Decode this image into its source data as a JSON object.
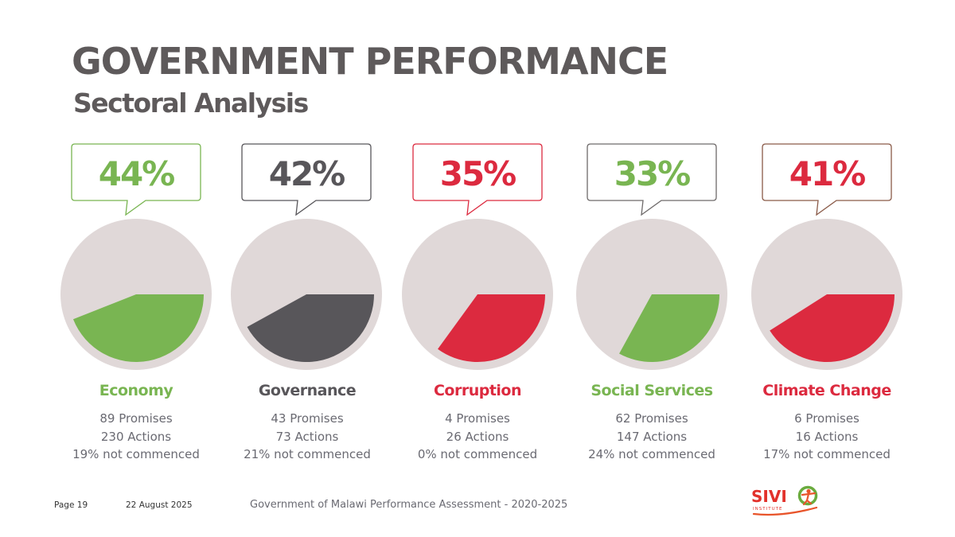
{
  "title": "GOVERNMENT PERFORMANCE",
  "subtitle": "Sectoral Analysis",
  "colors": {
    "green": "#79b552",
    "dark": "#58565a",
    "red": "#dc2a3f",
    "pie_background": "#e0d8d8",
    "climate_outline": "#8a5a48"
  },
  "chart_data": {
    "type": "pie",
    "categories": [
      "Economy",
      "Governance",
      "Corruption",
      "Social Services",
      "Climate Change"
    ],
    "values": [
      44,
      42,
      35,
      33,
      41
    ],
    "unit": "%",
    "value_labels": [
      "44%",
      "42%",
      "35%",
      "33%",
      "41%"
    ]
  },
  "sectors": [
    {
      "name": "Economy",
      "promises": "89 Promises",
      "actions": "230 Actions",
      "not_commenced": "19% not commenced",
      "color": "#79b552",
      "outline": "#79b552"
    },
    {
      "name": "Governance",
      "promises": "43 Promises",
      "actions": "73 Actions",
      "not_commenced": "21% not commenced",
      "color": "#58565a",
      "outline": "#58565a"
    },
    {
      "name": "Corruption",
      "promises": "4 Promises",
      "actions": "26 Actions",
      "not_commenced": "0% not commenced",
      "color": "#dc2a3f",
      "outline": "#dc2a3f"
    },
    {
      "name": "Social Services",
      "promises": "62 Promises",
      "actions": "147 Actions",
      "not_commenced": "24% not commenced",
      "color": "#79b552",
      "outline": "#6e6a6a"
    },
    {
      "name": "Climate Change",
      "promises": "6 Promises",
      "actions": "16 Actions",
      "not_commenced": "17% not commenced",
      "color": "#dc2a3f",
      "outline": "#8a5a48"
    }
  ],
  "footer": {
    "page": "Page 19",
    "date": "22 August 2025",
    "center": "Government of Malawi Performance Assessment - 2020-2025"
  },
  "logo": {
    "text": "SIVI",
    "subtext": "INSTITUTE",
    "icon": "sivio-logo-icon"
  }
}
